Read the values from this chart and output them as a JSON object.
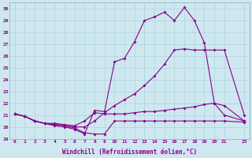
{
  "xlabel": "Windchill (Refroidissement éolien,°C)",
  "bg_color": "#cfe8f0",
  "line_color": "#880088",
  "grid_color": "#aad4dc",
  "xlim": [
    -0.5,
    23.5
  ],
  "ylim": [
    19,
    30.5
  ],
  "xticks": [
    0,
    1,
    2,
    3,
    4,
    5,
    6,
    7,
    8,
    9,
    10,
    11,
    12,
    13,
    14,
    15,
    16,
    17,
    18,
    19,
    20,
    21,
    23
  ],
  "yticks": [
    19,
    20,
    21,
    22,
    23,
    24,
    25,
    26,
    27,
    28,
    29,
    30
  ],
  "x_data": [
    0,
    1,
    2,
    3,
    4,
    5,
    6,
    7,
    8,
    9,
    10,
    11,
    12,
    13,
    14,
    15,
    16,
    17,
    18,
    19,
    20,
    21,
    23
  ],
  "series": [
    [
      21.1,
      20.9,
      20.5,
      20.3,
      20.2,
      20.1,
      19.9,
      19.5,
      19.4,
      19.4,
      20.5,
      20.5,
      20.5,
      20.5,
      20.5,
      20.5,
      20.5,
      20.5,
      20.5,
      20.5,
      20.5,
      20.5,
      20.4
    ],
    [
      21.1,
      20.9,
      20.5,
      20.3,
      20.3,
      20.2,
      20.1,
      20.5,
      21.2,
      21.1,
      21.1,
      21.1,
      21.2,
      21.3,
      21.3,
      21.4,
      21.5,
      21.6,
      21.7,
      21.9,
      22.0,
      21.8,
      20.5
    ],
    [
      21.1,
      20.9,
      20.5,
      20.3,
      20.2,
      20.1,
      20.0,
      20.0,
      20.5,
      21.2,
      21.8,
      22.3,
      22.8,
      23.5,
      24.3,
      25.3,
      26.5,
      26.6,
      26.5,
      26.5,
      26.5,
      26.5,
      21.0
    ],
    [
      21.1,
      20.9,
      20.5,
      20.3,
      20.1,
      20.0,
      19.8,
      19.4,
      21.4,
      21.3,
      25.5,
      25.8,
      27.2,
      29.0,
      29.3,
      29.7,
      29.0,
      30.1,
      29.0,
      27.1,
      22.0,
      21.0,
      20.5
    ]
  ]
}
